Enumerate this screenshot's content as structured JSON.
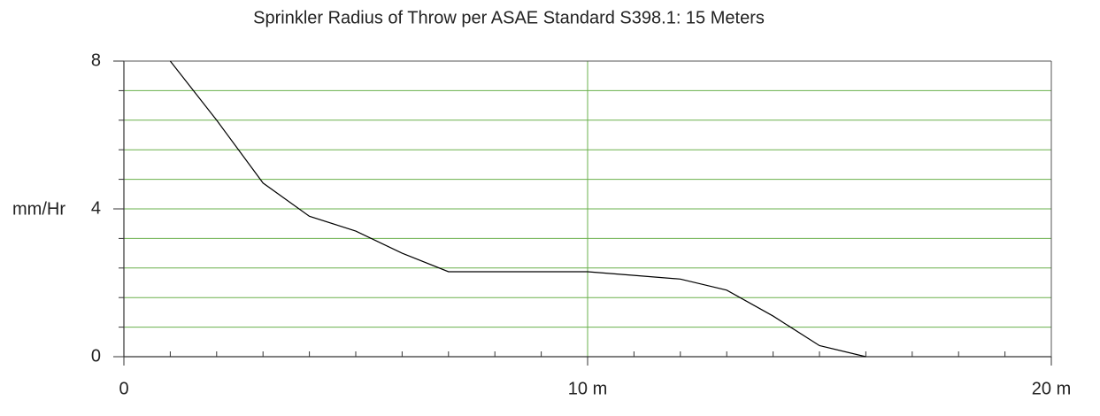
{
  "chart_data": {
    "type": "line",
    "title": "Sprinkler Radius of Throw per ASAE Standard S398.1: 15 Meters",
    "y_label": "mm/Hr",
    "x": [
      1,
      2,
      3,
      4,
      5,
      6,
      7,
      8,
      9,
      10,
      11,
      12,
      13,
      14,
      15,
      16
    ],
    "series": [
      {
        "color": "#000000",
        "values": [
          8,
          6.4,
          4.7,
          3.8,
          3.4,
          2.8,
          2.3,
          2.3,
          2.3,
          2.3,
          2.2,
          2.1,
          1.8,
          1.1,
          0.3,
          0
        ]
      }
    ],
    "xlim": [
      0,
      20
    ],
    "ylim": [
      0,
      8
    ],
    "xticks": [
      0,
      {
        "value": 10,
        "label": "10 m"
      },
      {
        "value": 20,
        "label": "20 m"
      }
    ],
    "yticks": [
      0,
      4,
      8
    ],
    "xminorticks": [
      1,
      2,
      3,
      4,
      5,
      6,
      7,
      8,
      9,
      11,
      12,
      13,
      14,
      15,
      16,
      17,
      18,
      19
    ],
    "yminorticks": [
      0.8,
      1.6,
      2.4,
      3.2,
      4.8,
      5.6,
      6.4,
      7.2
    ],
    "grid": true,
    "grid_color": "#6ab04c"
  }
}
